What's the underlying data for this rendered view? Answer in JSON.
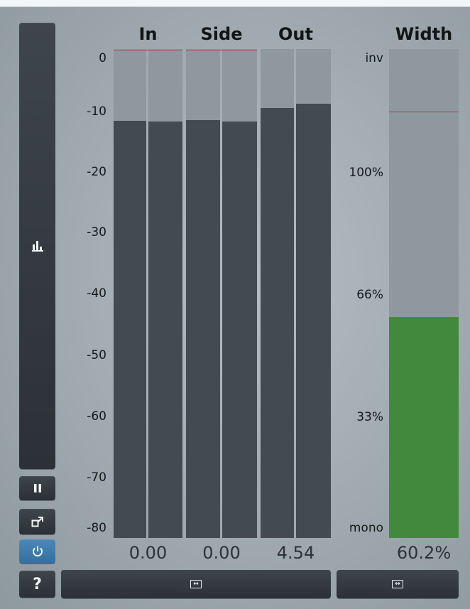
{
  "headers": {
    "in": "In",
    "side": "Side",
    "out": "Out",
    "width": "Width"
  },
  "scale_db": [
    "0",
    "-10",
    "-20",
    "-30",
    "-40",
    "-50",
    "-60",
    "-70",
    "-80"
  ],
  "scale_width": [
    "inv",
    "100%",
    "66%",
    "33%",
    "mono"
  ],
  "meters": {
    "in": {
      "channels_db": [
        -11.7,
        -11.9
      ],
      "peak_db": 0,
      "readout": "0.00"
    },
    "side": {
      "channels_db": [
        -11.6,
        -11.9
      ],
      "peak_db": 0,
      "readout": "0.00"
    },
    "out": {
      "channels_db": [
        -9.6,
        -9.0
      ],
      "readout": "4.54"
    }
  },
  "width_meter": {
    "level_fraction": 0.452,
    "peak_fraction": 0.872,
    "readout": "60.2%"
  },
  "sidebar": {
    "help_label": "?"
  },
  "colors": {
    "fill": "#434a50",
    "track": "#8e989e",
    "peak": "#a2474a",
    "width_fill": "#43893d",
    "active_button": "#3d7bab"
  },
  "icons": [
    "bar-chart-icon",
    "pause-icon",
    "popout-icon",
    "power-icon",
    "help-icon",
    "stereo-link-icon"
  ]
}
